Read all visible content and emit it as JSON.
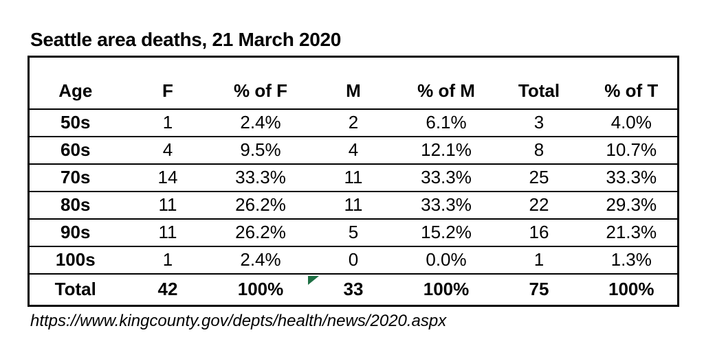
{
  "page": {
    "title": "Seattle area deaths, 21 March 2020",
    "source_url": "https://www.kingcounty.gov/depts/health/news/2020.aspx"
  },
  "table": {
    "columns": [
      "Age",
      "F",
      "% of F",
      "M",
      "% of M",
      "Total",
      "% of T"
    ],
    "rows": [
      [
        "50s",
        "1",
        "2.4%",
        "2",
        "6.1%",
        "3",
        "4.0%"
      ],
      [
        "60s",
        "4",
        "9.5%",
        "4",
        "12.1%",
        "8",
        "10.7%"
      ],
      [
        "70s",
        "14",
        "33.3%",
        "11",
        "33.3%",
        "25",
        "33.3%"
      ],
      [
        "80s",
        "11",
        "26.2%",
        "11",
        "33.3%",
        "22",
        "29.3%"
      ],
      [
        "90s",
        "11",
        "26.2%",
        "5",
        "15.2%",
        "16",
        "21.3%"
      ],
      [
        "100s",
        "1",
        "2.4%",
        "0",
        "0.0%",
        "1",
        "1.3%"
      ]
    ],
    "total": [
      "Total",
      "42",
      "100%",
      "33",
      "100%",
      "75",
      "100%"
    ]
  },
  "icons": {
    "excel_error_indicator": "green-triangle"
  },
  "colors": {
    "background": "#ffffff",
    "text": "#000000",
    "border": "#000000",
    "error_triangle": "#1e7044"
  },
  "chart_data": {
    "type": "table",
    "title": "Seattle area deaths, 21 March 2020",
    "columns": [
      "Age",
      "F",
      "% of F",
      "M",
      "% of M",
      "Total",
      "% of T"
    ],
    "rows": [
      [
        "50s",
        1,
        "2.4%",
        2,
        "6.1%",
        3,
        "4.0%"
      ],
      [
        "60s",
        4,
        "9.5%",
        4,
        "12.1%",
        8,
        "10.7%"
      ],
      [
        "70s",
        14,
        "33.3%",
        11,
        "33.3%",
        25,
        "33.3%"
      ],
      [
        "80s",
        11,
        "26.2%",
        11,
        "33.3%",
        22,
        "29.3%"
      ],
      [
        "90s",
        11,
        "26.2%",
        5,
        "15.2%",
        16,
        "21.3%"
      ],
      [
        "100s",
        1,
        "2.4%",
        0,
        "0.0%",
        1,
        "1.3%"
      ],
      [
        "Total",
        42,
        "100%",
        33,
        "100%",
        75,
        "100%"
      ]
    ],
    "annotations": [
      "source: https://www.kingcounty.gov/depts/health/news/2020.aspx"
    ]
  }
}
